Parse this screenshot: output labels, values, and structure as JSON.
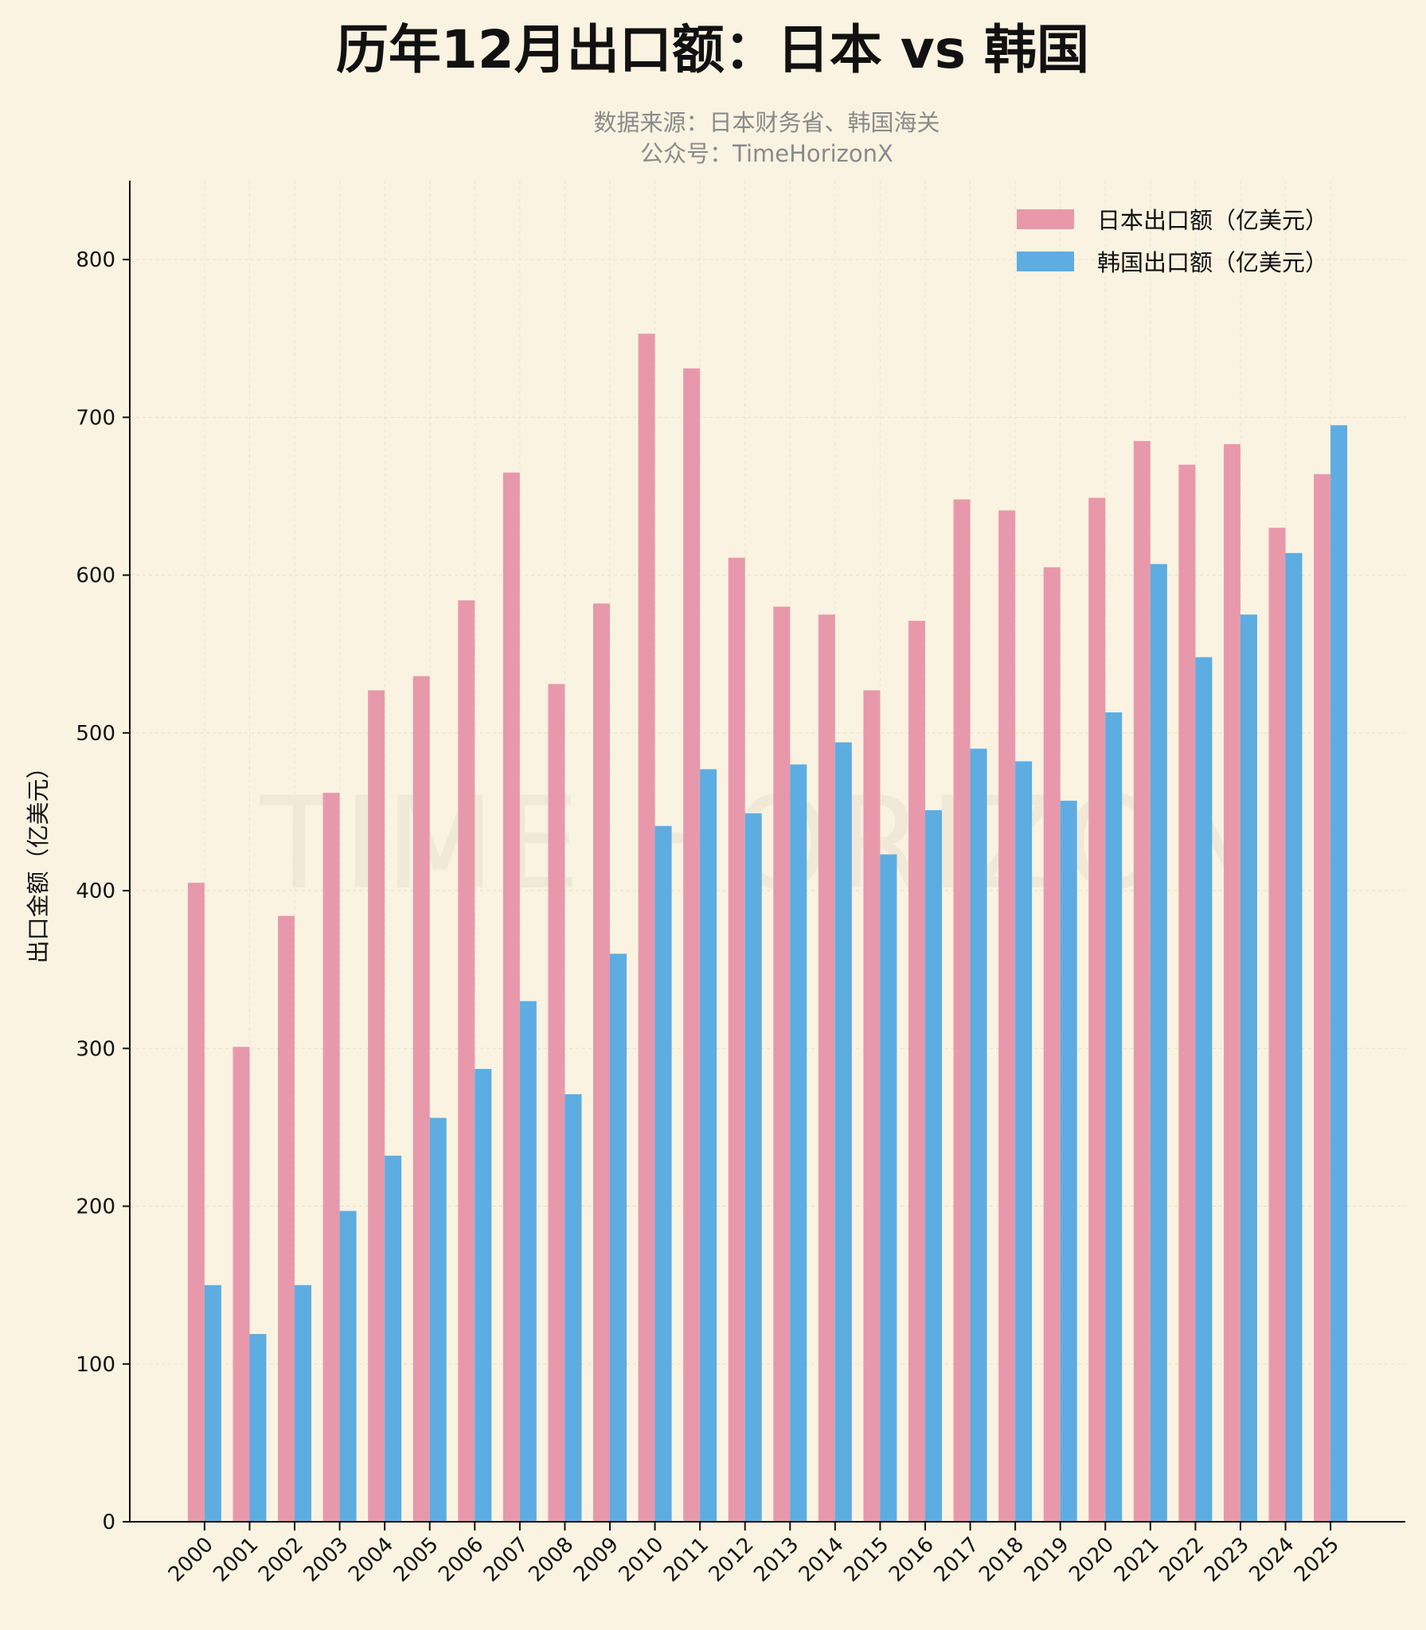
{
  "chart_data": {
    "type": "bar",
    "title": "历年12月出口额：日本 vs 韩国",
    "subtitle": [
      "数据来源：日本财务省、韩国海关",
      "公众号：TimeHorizonX"
    ],
    "xlabel": "",
    "ylabel": "出口金额（亿美元）",
    "ylim": [
      0,
      850
    ],
    "yticks": [
      0,
      100,
      200,
      300,
      400,
      500,
      600,
      700,
      800
    ],
    "grid": true,
    "legend_position": "top-right",
    "watermark": "TIME HORIZON",
    "categories": [
      "2000",
      "2001",
      "2002",
      "2003",
      "2004",
      "2005",
      "2006",
      "2007",
      "2008",
      "2009",
      "2010",
      "2011",
      "2012",
      "2013",
      "2014",
      "2015",
      "2016",
      "2017",
      "2018",
      "2019",
      "2020",
      "2021",
      "2022",
      "2023",
      "2024",
      "2025"
    ],
    "series": [
      {
        "name": "日本出口额（亿美元）",
        "color": "#e799ab",
        "values": [
          405,
          301,
          384,
          462,
          527,
          536,
          584,
          665,
          531,
          582,
          753,
          731,
          611,
          580,
          575,
          527,
          571,
          648,
          641,
          605,
          649,
          685,
          670,
          683,
          630,
          664
        ]
      },
      {
        "name": "韩国出口额（亿美元）",
        "color": "#5dade2",
        "values": [
          150,
          119,
          150,
          197,
          232,
          256,
          287,
          330,
          271,
          360,
          441,
          477,
          449,
          480,
          494,
          423,
          451,
          490,
          482,
          457,
          513,
          607,
          548,
          575,
          614,
          695
        ]
      }
    ]
  },
  "colors": {
    "background": "#faf3e1",
    "text": "#111111",
    "subtitle": "#8a8a8a"
  }
}
